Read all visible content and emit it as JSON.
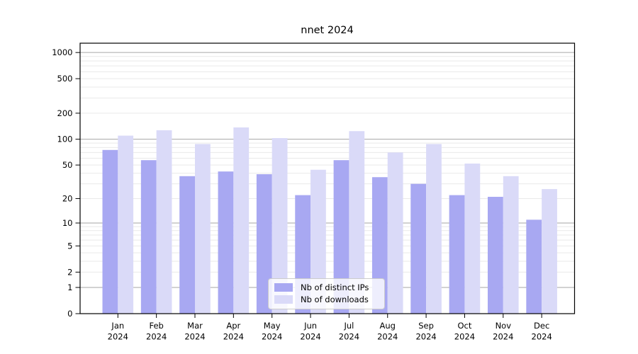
{
  "title": "nnet 2024",
  "colors": {
    "ips": "#a8a8f2",
    "downloads": "#dadaf8",
    "grid_major": "#a6a6a6",
    "grid_minor": "#e9e9e9",
    "axis": "#000000",
    "text": "#000000",
    "legend_border": "#cccccc"
  },
  "legend": {
    "items": [
      {
        "key": "ips",
        "label": "Nb of distinct IPs"
      },
      {
        "key": "downloads",
        "label": "Nb of downloads"
      }
    ]
  },
  "chart_data": {
    "type": "bar",
    "title": "nnet 2024",
    "categories": [
      "Jan",
      "Feb",
      "Mar",
      "Apr",
      "May",
      "Jun",
      "Jul",
      "Aug",
      "Sep",
      "Oct",
      "Nov",
      "Dec"
    ],
    "category_year": "2024",
    "series": [
      {
        "name": "Nb of distinct IPs",
        "color_key": "ips",
        "values": [
          75,
          57,
          37,
          42,
          39,
          22,
          57,
          36,
          30,
          22,
          21,
          11
        ]
      },
      {
        "name": "Nb of downloads",
        "color_key": "downloads",
        "values": [
          110,
          127,
          88,
          137,
          103,
          44,
          124,
          70,
          88,
          52,
          37,
          26
        ]
      }
    ],
    "yscale": "log1p",
    "yticks": [
      0,
      1,
      2,
      5,
      10,
      20,
      50,
      100,
      200,
      500,
      1000
    ],
    "ylim": [
      0,
      1280
    ],
    "xlabel": "",
    "ylabel": "",
    "grid": true,
    "legend_position": "lower-center-inside"
  }
}
